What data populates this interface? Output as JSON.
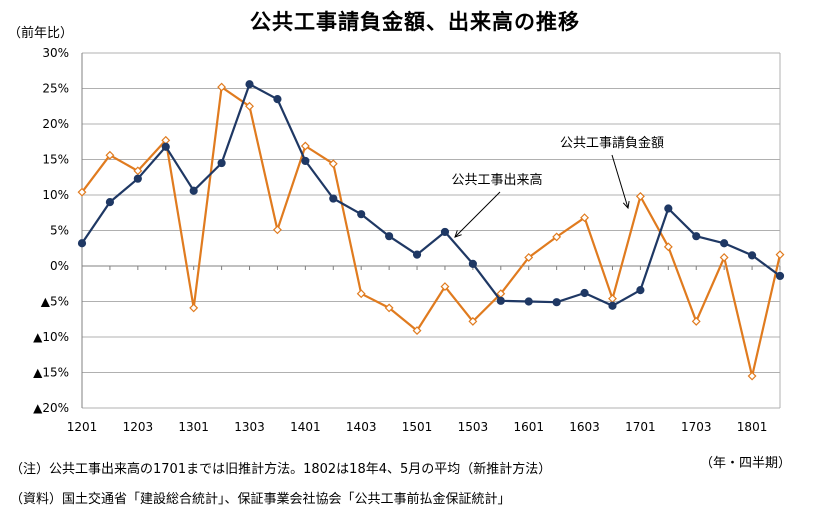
{
  "chart_data": {
    "type": "line",
    "title": "公共工事請負金額、出来高の推移",
    "ylabel": "（前年比）",
    "xlabel": "（年・四半期）",
    "ylim": [
      -20,
      30
    ],
    "yticks": [
      30,
      25,
      20,
      15,
      10,
      5,
      0,
      -5,
      -10,
      -15,
      -20
    ],
    "ytick_labels": [
      "30%",
      "25%",
      "20%",
      "15%",
      "10%",
      "5%",
      "0%",
      "▲5%",
      "▲10%",
      "▲15%",
      "▲20%"
    ],
    "categories": [
      "1201",
      "1202",
      "1203",
      "1204",
      "1301",
      "1302",
      "1303",
      "1304",
      "1401",
      "1402",
      "1403",
      "1404",
      "1501",
      "1502",
      "1503",
      "1504",
      "1601",
      "1602",
      "1603",
      "1604",
      "1701",
      "1702",
      "1703",
      "1704",
      "1801",
      "1802"
    ],
    "xtick_labels": [
      "1201",
      "1203",
      "1301",
      "1303",
      "1401",
      "1403",
      "1501",
      "1503",
      "1601",
      "1603",
      "1701",
      "1703",
      "1801"
    ],
    "series": [
      {
        "name": "公共工事出来高",
        "color": "#1f3864",
        "marker": "filled-circle",
        "values": [
          3.2,
          9.0,
          12.3,
          16.8,
          10.6,
          14.5,
          25.6,
          23.5,
          14.8,
          9.5,
          7.3,
          4.2,
          1.6,
          4.8,
          0.3,
          -4.9,
          -5.0,
          -5.1,
          -3.8,
          -5.6,
          -3.4,
          8.1,
          4.2,
          3.2,
          1.5,
          -1.4
        ]
      },
      {
        "name": "公共工事請負金額",
        "color": "#e07b1f",
        "marker": "open-diamond",
        "values": [
          10.4,
          15.6,
          13.4,
          17.7,
          -5.9,
          25.2,
          22.5,
          5.1,
          16.9,
          14.4,
          -3.9,
          -5.9,
          -9.1,
          -2.9,
          -7.8,
          -3.9,
          1.2,
          4.1,
          6.8,
          -4.6,
          9.8,
          2.7,
          -7.8,
          1.2,
          -15.5,
          1.6
        ]
      }
    ],
    "annotations": [
      {
        "text": "公共工事請負金額",
        "target_series": 1
      },
      {
        "text": "公共工事出来高",
        "target_series": 0
      }
    ],
    "grid": true,
    "legend": "annotations"
  },
  "note": "（注）公共工事出来高の1701までは旧推計方法。1802は18年4、5月の平均（新推計方法）",
  "source": "（資料）国土交通省「建設総合統計」、保証事業会社協会「公共工事前払金保証統計」"
}
